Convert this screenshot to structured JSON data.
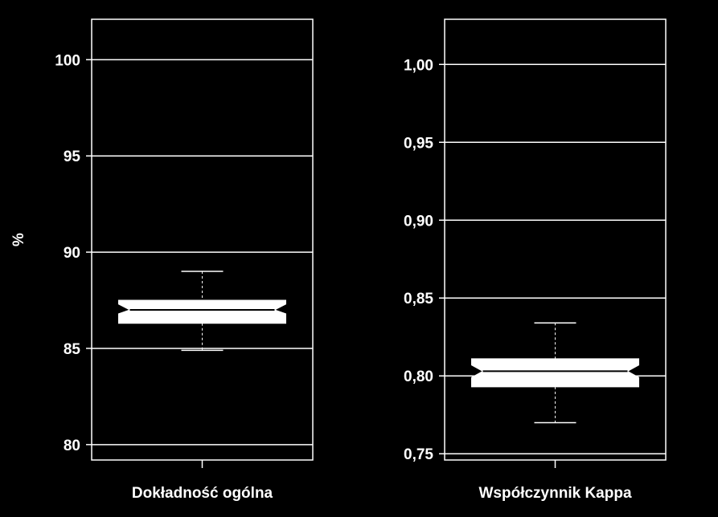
{
  "chart_data": [
    {
      "type": "boxplot",
      "xlabel": "Dokładność ogólna",
      "ylabel": "%",
      "ylim": [
        79.2,
        102.1
      ],
      "yticks": [
        80,
        85,
        90,
        95,
        100
      ],
      "ytick_labels": [
        "80",
        "85",
        "90",
        "95",
        "100"
      ],
      "grid": true,
      "box": {
        "whisker_low": 84.9,
        "q1": 86.3,
        "notch_low": 86.8,
        "median": 87.0,
        "notch_high": 87.3,
        "q3": 87.5,
        "whisker_high": 89.0
      }
    },
    {
      "type": "boxplot",
      "xlabel": "Współczynnik Kappa",
      "ylabel": "",
      "ylim": [
        0.746,
        1.029
      ],
      "yticks": [
        0.75,
        0.8,
        0.85,
        0.9,
        0.95,
        1.0
      ],
      "ytick_labels": [
        "0,75",
        "0,80",
        "0,85",
        "0,90",
        "0,95",
        "1,00"
      ],
      "grid": true,
      "box": {
        "whisker_low": 0.77,
        "q1": 0.793,
        "notch_low": 0.799,
        "median": 0.803,
        "notch_high": 0.807,
        "q3": 0.811,
        "whisker_high": 0.834
      }
    }
  ]
}
